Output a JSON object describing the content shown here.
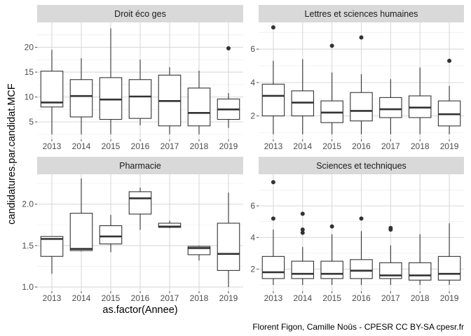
{
  "chart_data": {
    "type": "boxplot",
    "layout": "facet-wrap-2x2",
    "xlabel": "as.factor(Annee)",
    "ylabel": "candidatures.par.candidat.MCF",
    "caption": "Florent Figon, Camille Noûs - CPESR CC BY-SA cpesr.fr",
    "categories": [
      "2013",
      "2014",
      "2015",
      "2016",
      "2017",
      "2018",
      "2019"
    ],
    "colors": {
      "box_fill": "#ffffff",
      "box_line": "#333333",
      "panel_grid": "#d9d9d9",
      "strip_bg": "#d9d9d9"
    },
    "facets": [
      {
        "title": "Droit éco ges",
        "ylim": [
          1.5,
          25
        ],
        "yticks": [
          5,
          10,
          15,
          20
        ],
        "ytick_labels": [
          "5",
          "10",
          "15",
          "20"
        ],
        "boxes": [
          {
            "year": "2013",
            "low": 2.5,
            "q1": 8.0,
            "median": 8.9,
            "q3": 15.2,
            "high": 19.5,
            "outliers": []
          },
          {
            "year": "2014",
            "low": 2.5,
            "q1": 6.0,
            "median": 10.2,
            "q3": 13.5,
            "high": 17.8,
            "outliers": []
          },
          {
            "year": "2015",
            "low": 2.5,
            "q1": 5.5,
            "median": 9.5,
            "q3": 13.9,
            "high": 23.8,
            "outliers": []
          },
          {
            "year": "2016",
            "low": 4.3,
            "q1": 5.7,
            "median": 10.1,
            "q3": 13.5,
            "high": 17.5,
            "outliers": []
          },
          {
            "year": "2017",
            "low": 2.5,
            "q1": 4.2,
            "median": 9.2,
            "q3": 14.4,
            "high": 16.0,
            "outliers": []
          },
          {
            "year": "2018",
            "low": 2.5,
            "q1": 4.2,
            "median": 6.8,
            "q3": 11.8,
            "high": 15.3,
            "outliers": []
          },
          {
            "year": "2019",
            "low": 3.8,
            "q1": 5.5,
            "median": 7.5,
            "q3": 9.6,
            "high": 10.8,
            "outliers": [
              19.8
            ]
          }
        ]
      },
      {
        "title": "Lettres et sciences humaines",
        "ylim": [
          0.6,
          7.6
        ],
        "yticks": [
          2,
          4,
          6
        ],
        "ytick_labels": [
          "2",
          "4",
          "6"
        ],
        "boxes": [
          {
            "year": "2013",
            "low": 0.9,
            "q1": 2.0,
            "median": 3.2,
            "q3": 3.9,
            "high": 5.3,
            "outliers": [
              7.3
            ]
          },
          {
            "year": "2014",
            "low": 0.9,
            "q1": 2.0,
            "median": 2.8,
            "q3": 3.5,
            "high": 5.4,
            "outliers": []
          },
          {
            "year": "2015",
            "low": 0.9,
            "q1": 1.6,
            "median": 2.2,
            "q3": 2.9,
            "high": 4.6,
            "outliers": [
              6.2
            ]
          },
          {
            "year": "2016",
            "low": 0.9,
            "q1": 1.7,
            "median": 2.3,
            "q3": 3.4,
            "high": 4.5,
            "outliers": [
              6.7
            ]
          },
          {
            "year": "2017",
            "low": 0.9,
            "q1": 1.9,
            "median": 2.4,
            "q3": 3.1,
            "high": 4.2,
            "outliers": []
          },
          {
            "year": "2018",
            "low": 0.9,
            "q1": 1.9,
            "median": 2.5,
            "q3": 3.2,
            "high": 4.9,
            "outliers": []
          },
          {
            "year": "2019",
            "low": 0.9,
            "q1": 1.4,
            "median": 2.1,
            "q3": 2.9,
            "high": 3.8,
            "outliers": [
              5.3
            ]
          }
        ]
      },
      {
        "title": "Pharmacie",
        "ylim": [
          0.95,
          2.36
        ],
        "yticks": [
          1.0,
          1.5,
          2.0
        ],
        "ytick_labels": [
          "1.0",
          "1.5",
          "2.0"
        ],
        "boxes": [
          {
            "year": "2013",
            "low": 1.16,
            "q1": 1.37,
            "median": 1.58,
            "q3": 1.61,
            "high": 1.61,
            "outliers": []
          },
          {
            "year": "2014",
            "low": 1.43,
            "q1": 1.44,
            "median": 1.46,
            "q3": 1.89,
            "high": 2.31,
            "outliers": []
          },
          {
            "year": "2015",
            "low": 1.42,
            "q1": 1.52,
            "median": 1.61,
            "q3": 1.74,
            "high": 1.87,
            "outliers": []
          },
          {
            "year": "2016",
            "low": 1.69,
            "q1": 1.88,
            "median": 2.07,
            "q3": 2.15,
            "high": 2.2,
            "outliers": []
          },
          {
            "year": "2017",
            "low": 1.71,
            "q1": 1.72,
            "median": 1.73,
            "q3": 1.77,
            "high": 1.8,
            "outliers": []
          },
          {
            "year": "2018",
            "low": 1.32,
            "q1": 1.39,
            "median": 1.47,
            "q3": 1.49,
            "high": 1.5,
            "outliers": []
          },
          {
            "year": "2019",
            "low": 1.0,
            "q1": 1.2,
            "median": 1.4,
            "q3": 1.77,
            "high": 2.14,
            "outliers": []
          }
        ]
      },
      {
        "title": "Sciences et techniques",
        "ylim": [
          0.6,
          8.0
        ],
        "yticks": [
          2,
          4,
          6
        ],
        "ytick_labels": [
          "2",
          "4",
          "6"
        ],
        "boxes": [
          {
            "year": "2013",
            "low": 1.0,
            "q1": 1.4,
            "median": 1.8,
            "q3": 2.8,
            "high": 4.5,
            "outliers": [
              5.2,
              7.5
            ]
          },
          {
            "year": "2014",
            "low": 1.0,
            "q1": 1.4,
            "median": 1.7,
            "q3": 2.5,
            "high": 3.4,
            "outliers": [
              4.3,
              4.5,
              5.5
            ]
          },
          {
            "year": "2015",
            "low": 1.0,
            "q1": 1.4,
            "median": 1.7,
            "q3": 2.5,
            "high": 4.2,
            "outliers": [
              4.7
            ]
          },
          {
            "year": "2016",
            "low": 1.0,
            "q1": 1.4,
            "median": 1.9,
            "q3": 2.6,
            "high": 4.4,
            "outliers": [
              5.2
            ]
          },
          {
            "year": "2017",
            "low": 1.0,
            "q1": 1.4,
            "median": 1.6,
            "q3": 2.4,
            "high": 3.5,
            "outliers": [
              4.5,
              4.6
            ]
          },
          {
            "year": "2018",
            "low": 1.0,
            "q1": 1.3,
            "median": 1.6,
            "q3": 2.4,
            "high": 4.2,
            "outliers": []
          },
          {
            "year": "2019",
            "low": 1.0,
            "q1": 1.3,
            "median": 1.7,
            "q3": 2.8,
            "high": 4.9,
            "outliers": []
          }
        ]
      }
    ]
  }
}
